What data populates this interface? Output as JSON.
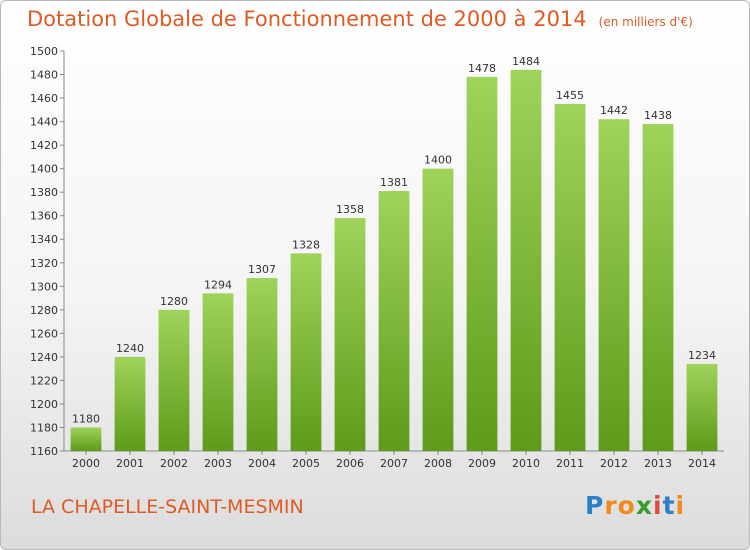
{
  "title": "Dotation Globale de Fonctionnement de 2000 à 2014",
  "unit_note": "(en milliers d'€)",
  "commune": "LA CHAPELLE-SAINT-MESMIN",
  "logo": {
    "text": "Proxiti",
    "letters": [
      "P",
      "r",
      "o",
      "x",
      "i",
      "t",
      "i"
    ]
  },
  "colors": {
    "title": "#e05a23",
    "bar_light": "#9fd35a",
    "bar_dark": "#5e9b1a",
    "logo": [
      "#2a7fc9",
      "#f08a1c",
      "#f08a1c",
      "#3a9a2a",
      "#e04a3a",
      "#2a7fc9",
      "#f08a1c"
    ]
  },
  "chart_data": {
    "type": "bar",
    "title": "Dotation Globale de Fonctionnement de 2000 à 2014",
    "categories": [
      "2000",
      "2001",
      "2002",
      "2003",
      "2004",
      "2005",
      "2006",
      "2007",
      "2008",
      "2009",
      "2010",
      "2011",
      "2012",
      "2013",
      "2014"
    ],
    "values": [
      1180,
      1240,
      1280,
      1294,
      1307,
      1328,
      1358,
      1381,
      1400,
      1478,
      1484,
      1455,
      1442,
      1438,
      1234
    ],
    "data_labels": [
      "1180",
      "1240",
      "1280",
      "1294",
      "1307",
      "1328",
      "1358",
      "1381",
      "1400",
      "1478",
      "1484",
      "1455",
      "1442",
      "1438",
      "1234"
    ],
    "xlabel": "",
    "ylabel": "",
    "ylim": [
      1160,
      1500
    ],
    "yticks": [
      "1160",
      "1180",
      "1200",
      "1220",
      "1240",
      "1260",
      "1280",
      "1300",
      "1320",
      "1340",
      "1360",
      "1380",
      "1400",
      "1420",
      "1440",
      "1460",
      "1480",
      "1500"
    ],
    "grid": false,
    "legend": "none"
  }
}
